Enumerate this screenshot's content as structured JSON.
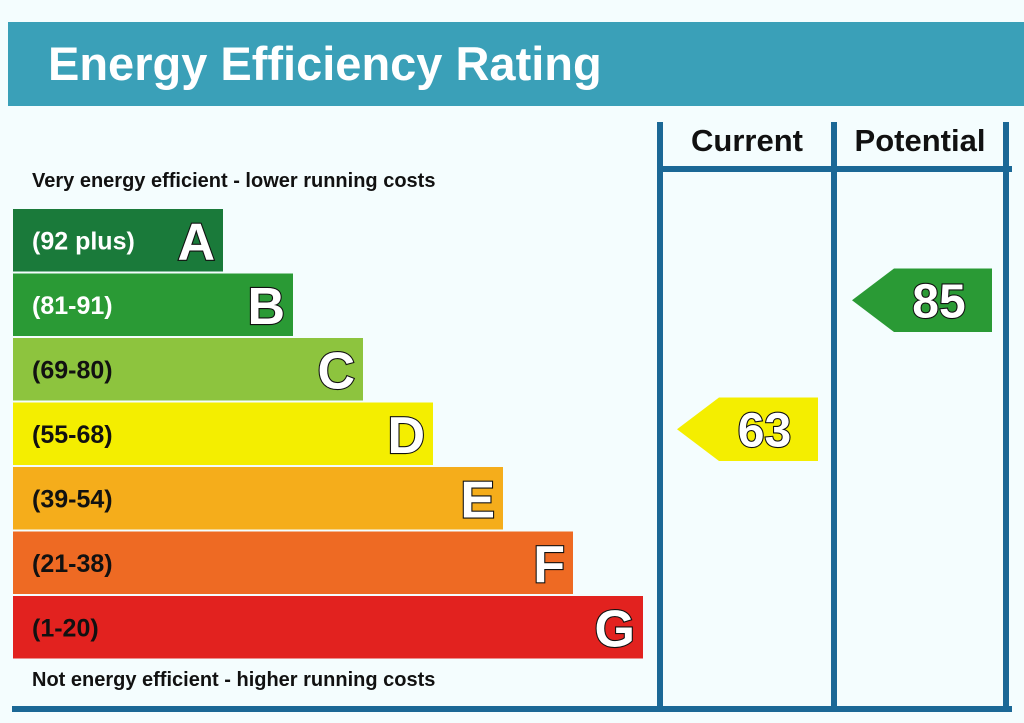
{
  "title": "Energy Efficiency Rating",
  "top_caption": "Very energy efficient - lower running costs",
  "bottom_caption": "Not energy efficient - higher running costs",
  "chart_data": {
    "type": "bar",
    "title": "Energy Efficiency Rating",
    "bands": [
      {
        "letter": "A",
        "range": "(92 plus)",
        "min": 92,
        "max": 100,
        "color": "#1a7a3a",
        "text_color": "light"
      },
      {
        "letter": "B",
        "range": "(81-91)",
        "min": 81,
        "max": 91,
        "color": "#2a9a35",
        "text_color": "light"
      },
      {
        "letter": "C",
        "range": "(69-80)",
        "min": 69,
        "max": 80,
        "color": "#8dc43e",
        "text_color": "dark"
      },
      {
        "letter": "D",
        "range": "(55-68)",
        "min": 55,
        "max": 68,
        "color": "#f4ee00",
        "text_color": "dark"
      },
      {
        "letter": "E",
        "range": "(39-54)",
        "min": 39,
        "max": 54,
        "color": "#f5ad1b",
        "text_color": "dark"
      },
      {
        "letter": "F",
        "range": "(21-38)",
        "min": 21,
        "max": 38,
        "color": "#ee6a23",
        "text_color": "dark"
      },
      {
        "letter": "G",
        "range": "(1-20)",
        "min": 1,
        "max": 20,
        "color": "#e2221f",
        "text_color": "dark"
      }
    ],
    "columns": [
      {
        "label": "Current",
        "value": 63,
        "band": "D",
        "color": "#f4ee00"
      },
      {
        "label": "Potential",
        "value": 85,
        "band": "B",
        "color": "#2a9a35"
      }
    ],
    "border_color": "#1b6896"
  }
}
